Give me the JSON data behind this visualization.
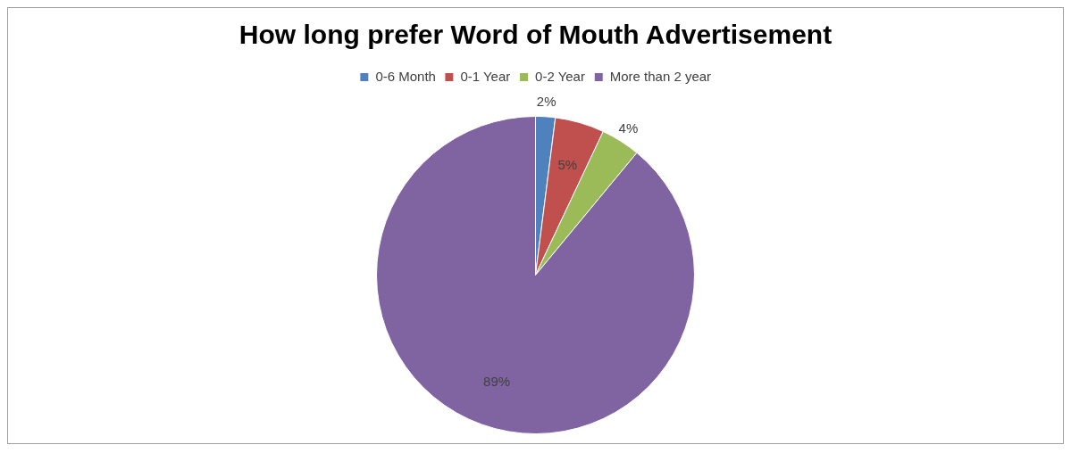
{
  "chart_data": {
    "type": "pie",
    "title": "How long prefer Word of Mouth Advertisement",
    "categories": [
      "0-6 Month",
      "0-1 Year",
      "0-2 Year",
      "More than 2 year"
    ],
    "values": [
      2,
      5,
      4,
      89
    ],
    "colors": [
      "#4f81bd",
      "#c0504d",
      "#9bbb59",
      "#8064a2"
    ],
    "value_labels": [
      "2%",
      "5%",
      "4%",
      "89%"
    ],
    "legend": "top"
  }
}
